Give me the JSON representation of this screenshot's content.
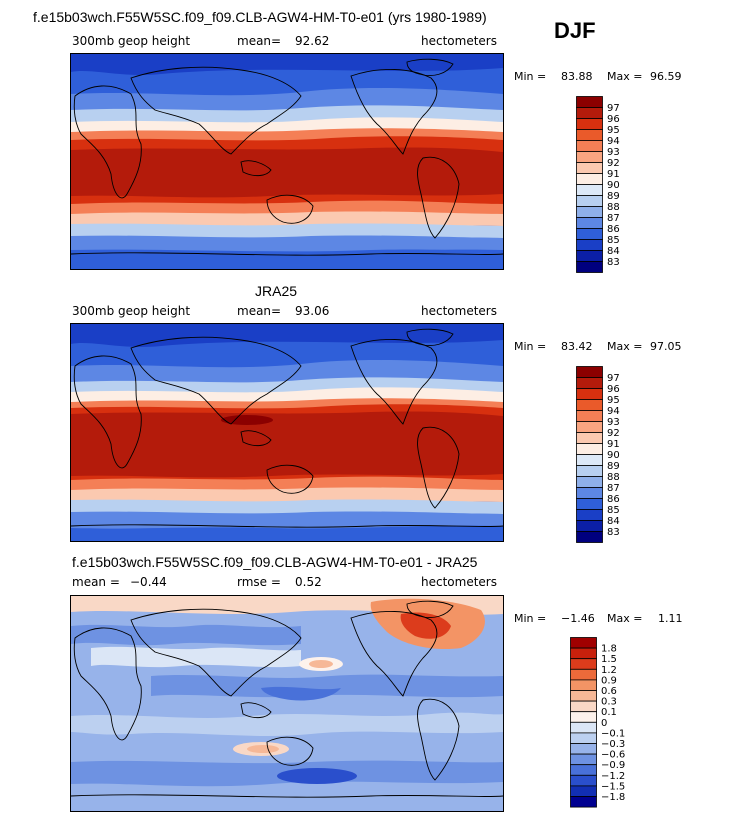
{
  "header": {
    "title": "f.e15b03wch.F55W5SC.f09_f09.CLB-AGW4-HM-T0-e01 (yrs 1980-1989)",
    "season": "DJF"
  },
  "chart_data": [
    {
      "type": "heatmap",
      "title": "",
      "field": "300mb geop height",
      "mean_label": "mean=",
      "mean": "92.62",
      "units": "hectometers",
      "min_label": "Min =",
      "min": "83.88",
      "max_label": "Max =",
      "max": "96.59",
      "colorbar_levels": [
        "97",
        "96",
        "95",
        "94",
        "93",
        "92",
        "91",
        "90",
        "89",
        "88",
        "87",
        "86",
        "85",
        "84",
        "83"
      ]
    },
    {
      "type": "heatmap",
      "title": "JRA25",
      "field": "300mb geop height",
      "mean_label": "mean=",
      "mean": "93.06",
      "units": "hectometers",
      "min_label": "Min =",
      "min": "83.42",
      "max_label": "Max =",
      "max": "97.05",
      "colorbar_levels": [
        "97",
        "96",
        "95",
        "94",
        "93",
        "92",
        "91",
        "90",
        "89",
        "88",
        "87",
        "86",
        "85",
        "84",
        "83"
      ]
    },
    {
      "type": "heatmap",
      "title": "f.e15b03wch.F55W5SC.f09_f09.CLB-AGW4-HM-T0-e01 - JRA25",
      "mean_label": "mean =",
      "mean": "−0.44",
      "rmse_label": "rmse =",
      "rmse": "0.52",
      "units": "hectometers",
      "min_label": "Min =",
      "min": "−1.46",
      "max_label": "Max =",
      "max": "1.11",
      "colorbar_levels": [
        "1.8",
        "1.5",
        "1.2",
        "0.9",
        "0.6",
        "0.3",
        "0.1",
        "0",
        "−0.1",
        "−0.3",
        "−0.6",
        "−0.9",
        "−1.2",
        "−1.5",
        "−1.8"
      ]
    }
  ],
  "colors": {
    "abs_scale": [
      "#8b0000",
      "#b41b0b",
      "#d7300f",
      "#ea5a2a",
      "#f47f56",
      "#f9a581",
      "#fbc9b0",
      "#fdeee4",
      "#dde9f7",
      "#b8d0f0",
      "#8fb0ea",
      "#5d87e4",
      "#2f5fd9",
      "#1a3fc6",
      "#0b1fa6",
      "#00007f"
    ],
    "diff_scale": [
      "#a00000",
      "#c8200c",
      "#dc3c1c",
      "#ec6a3a",
      "#f39465",
      "#f6b897",
      "#f9d8c6",
      "#fdf2ec",
      "#dbe6f6",
      "#bcd0f0",
      "#97b3ea",
      "#6e92e2",
      "#4971d9",
      "#2a4fcc",
      "#122fb4",
      "#000090"
    ]
  }
}
